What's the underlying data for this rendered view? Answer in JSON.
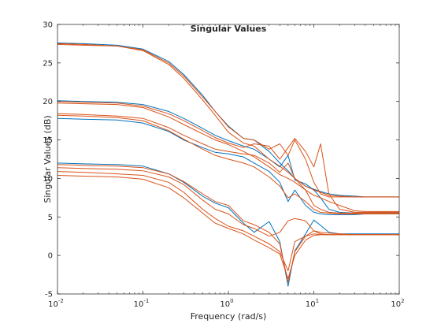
{
  "chart_data": {
    "type": "line",
    "title": "Singular Values",
    "xlabel": "Frequency (rad/s)",
    "ylabel": "Singular Values (dB)",
    "xscale": "log",
    "xlim": [
      0.01,
      100
    ],
    "ylim": [
      -5,
      30
    ],
    "grid": false,
    "legend": "none",
    "x_ticks": [
      {
        "base": "10",
        "exp": "-2",
        "value": 0.01
      },
      {
        "base": "10",
        "exp": "-1",
        "value": 0.1
      },
      {
        "base": "10",
        "exp": "0",
        "value": 1
      },
      {
        "base": "10",
        "exp": "1",
        "value": 10
      },
      {
        "base": "10",
        "exp": "2",
        "value": 100
      }
    ],
    "y_ticks": [
      -5,
      0,
      5,
      10,
      15,
      20,
      25,
      30
    ],
    "x": [
      0.01,
      0.02,
      0.05,
      0.1,
      0.2,
      0.3,
      0.5,
      0.7,
      1,
      1.5,
      2,
      3,
      4,
      5,
      6,
      8,
      10,
      12,
      15,
      20,
      30,
      40,
      60,
      100
    ],
    "series": [
      {
        "color": "#0072BD",
        "values": [
          27.6,
          27.5,
          27.3,
          26.8,
          25.2,
          23.5,
          20.8,
          18.7,
          16.8,
          15.2,
          15.0,
          13.5,
          12.0,
          11.0,
          10.0,
          9.0,
          8.6,
          8.3,
          8.0,
          7.8,
          7.7,
          7.6,
          7.6,
          7.6
        ]
      },
      {
        "color": "#0072BD",
        "values": [
          20.1,
          20.0,
          19.9,
          19.6,
          18.7,
          17.8,
          16.5,
          15.6,
          14.9,
          14.2,
          13.8,
          12.5,
          11.5,
          13.0,
          9.8,
          9.3,
          8.5,
          7.5,
          6.0,
          5.6,
          5.5,
          5.5,
          5.6,
          5.6
        ]
      },
      {
        "color": "#0072BD",
        "values": [
          17.8,
          17.7,
          17.6,
          17.2,
          16.1,
          15.0,
          14.0,
          13.4,
          13.2,
          12.8,
          12.0,
          10.9,
          9.5,
          7.0,
          8.5,
          6.5,
          5.6,
          5.4,
          5.3,
          5.3,
          5.3,
          5.4,
          5.4,
          5.4
        ]
      },
      {
        "color": "#0072BD",
        "values": [
          12.0,
          11.9,
          11.8,
          11.6,
          10.6,
          9.5,
          7.7,
          6.8,
          6.2,
          4.2,
          3.0,
          4.4,
          1.8,
          -4.0,
          0.6,
          2.8,
          4.6,
          3.9,
          3.0,
          2.8,
          2.8,
          2.8,
          2.8,
          2.8
        ]
      },
      {
        "color": "#D95319",
        "values": [
          27.4,
          27.3,
          27.2,
          26.7,
          25.0,
          23.3,
          20.6,
          18.7,
          16.7,
          15.2,
          15.0,
          13.8,
          14.5,
          13.0,
          15.0,
          12.5,
          9.5,
          8.0,
          7.6,
          7.6,
          7.6,
          7.6,
          7.6,
          7.6
        ]
      },
      {
        "color": "#D95319",
        "values": [
          27.5,
          27.4,
          27.2,
          26.6,
          24.8,
          23.0,
          20.2,
          18.2,
          16.0,
          14.6,
          14.2,
          12.5,
          11.6,
          10.8,
          10.0,
          9.0,
          8.5,
          8.2,
          7.8,
          7.7,
          7.6,
          7.6,
          7.6,
          7.6
        ]
      },
      {
        "color": "#D95319",
        "values": [
          20.0,
          19.9,
          19.8,
          19.4,
          18.4,
          17.5,
          16.2,
          15.3,
          14.6,
          14.0,
          14.5,
          14.2,
          12.5,
          14.0,
          15.2,
          13.5,
          11.5,
          14.5,
          8.0,
          6.0,
          5.6,
          5.6,
          5.6,
          5.6
        ]
      },
      {
        "color": "#D95319",
        "values": [
          19.8,
          19.7,
          19.6,
          19.2,
          18.0,
          17.0,
          15.8,
          15.0,
          14.4,
          13.5,
          12.8,
          11.5,
          10.5,
          10.0,
          9.5,
          8.5,
          7.8,
          7.5,
          7.0,
          6.5,
          5.8,
          5.7,
          5.7,
          5.7
        ]
      },
      {
        "color": "#D95319",
        "values": [
          18.4,
          18.3,
          18.1,
          17.8,
          16.6,
          15.6,
          14.5,
          13.8,
          13.5,
          13.2,
          13.0,
          12.0,
          10.8,
          12.0,
          10.0,
          8.5,
          6.5,
          6.0,
          5.6,
          5.5,
          5.5,
          5.5,
          5.5,
          5.5
        ]
      },
      {
        "color": "#D95319",
        "values": [
          18.2,
          18.1,
          17.9,
          17.5,
          16.2,
          15.1,
          13.8,
          13.0,
          12.5,
          12.0,
          11.5,
          10.2,
          9.0,
          7.5,
          8.0,
          7.0,
          6.0,
          5.6,
          5.5,
          5.4,
          5.4,
          5.4,
          5.4,
          5.4
        ]
      },
      {
        "color": "#D95319",
        "values": [
          11.8,
          11.7,
          11.6,
          11.4,
          10.6,
          9.6,
          8.0,
          7.0,
          6.5,
          4.5,
          4.0,
          3.0,
          1.5,
          -3.5,
          0.5,
          2.5,
          3.2,
          3.0,
          2.9,
          2.8,
          2.7,
          2.7,
          2.7,
          2.7
        ]
      },
      {
        "color": "#D95319",
        "values": [
          11.4,
          11.3,
          11.2,
          11.0,
          10.2,
          9.2,
          7.2,
          6.0,
          5.4,
          4.0,
          3.5,
          2.5,
          3.0,
          4.5,
          4.8,
          4.5,
          3.2,
          2.8,
          2.7,
          2.7,
          2.7,
          2.7,
          2.7,
          2.7
        ]
      },
      {
        "color": "#D95319",
        "values": [
          10.9,
          10.8,
          10.6,
          10.4,
          9.5,
          8.2,
          6.0,
          4.8,
          3.8,
          3.2,
          2.5,
          1.5,
          0.5,
          -2.0,
          1.8,
          2.5,
          2.8,
          2.7,
          2.7,
          2.7,
          2.7,
          2.7,
          2.7,
          2.7
        ]
      },
      {
        "color": "#D95319",
        "values": [
          10.4,
          10.3,
          10.2,
          9.9,
          8.8,
          7.5,
          5.5,
          4.2,
          3.5,
          2.8,
          2.0,
          1.0,
          0.2,
          -3.0,
          0.0,
          2.0,
          2.6,
          2.7,
          2.7,
          2.7,
          2.7,
          2.7,
          2.7,
          2.7
        ]
      }
    ]
  }
}
